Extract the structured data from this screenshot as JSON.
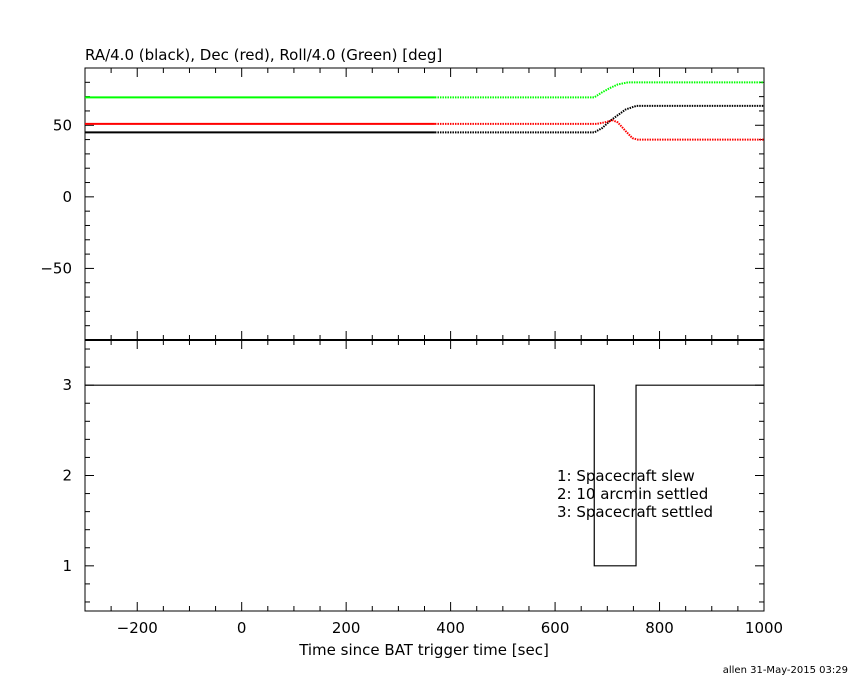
{
  "chart_data": [
    {
      "type": "line",
      "title": "RA/4.0 (black), Dec (red), Roll/4.0 (Green) [deg]",
      "xlim": [
        -300,
        1000
      ],
      "ylim": [
        -100,
        90
      ],
      "y_ticks": [
        -50,
        0,
        50
      ],
      "series": [
        {
          "color": "#000000",
          "points": [
            [
              -300,
              45
            ],
            [
              370,
              45
            ],
            [
              660,
              45
            ],
            [
              675,
              45
            ],
            [
              690,
              48
            ],
            [
              705,
              53
            ],
            [
              720,
              57
            ],
            [
              735,
              61
            ],
            [
              755,
              63.5
            ],
            [
              1000,
              63.5
            ]
          ]
        },
        {
          "color": "#ff0000",
          "points": [
            [
              -300,
              51
            ],
            [
              370,
              51
            ],
            [
              660,
              51
            ],
            [
              680,
              51
            ],
            [
              695,
              52
            ],
            [
              710,
              53.5
            ],
            [
              720,
              52
            ],
            [
              735,
              46
            ],
            [
              748,
              41
            ],
            [
              758,
              40
            ],
            [
              1000,
              40
            ]
          ]
        },
        {
          "color": "#00ff00",
          "points": [
            [
              -300,
              69.5
            ],
            [
              370,
              69.5
            ],
            [
              660,
              69.5
            ],
            [
              675,
              69.5
            ],
            [
              690,
              73
            ],
            [
              705,
              76
            ],
            [
              720,
              78.5
            ],
            [
              740,
              80
            ],
            [
              1000,
              80
            ]
          ]
        }
      ]
    },
    {
      "type": "line",
      "xlabel": "Time since BAT trigger time [sec]",
      "xlim": [
        -300,
        1000
      ],
      "ylim": [
        0.5,
        3.5
      ],
      "x_ticks": [
        -200,
        0,
        200,
        400,
        600,
        800,
        1000
      ],
      "y_ticks": [
        1,
        2,
        3
      ],
      "series": [
        {
          "color": "#000000",
          "points": [
            [
              -300,
              3
            ],
            [
              675,
              3
            ],
            [
              675,
              1
            ],
            [
              755,
              1
            ],
            [
              755,
              3
            ],
            [
              1000,
              3
            ]
          ]
        }
      ],
      "annotations": [
        "1: Spacecraft slew",
        "2: 10 arcmin settled",
        "3: Spacecraft settled"
      ]
    }
  ],
  "footer": "allen 31-May-2015 03:29"
}
